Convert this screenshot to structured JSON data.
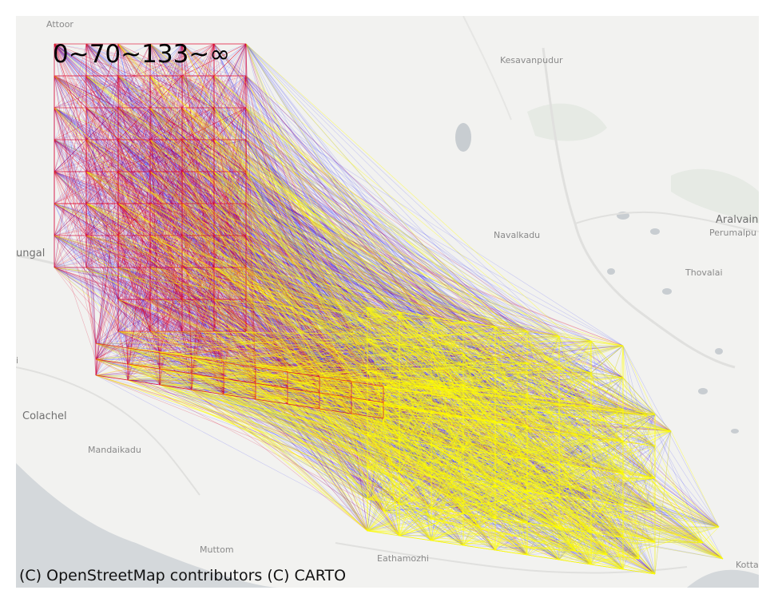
{
  "legend_text": "0~70~133~∞",
  "attribution": "(C) OpenStreetMap contributors (C) CARTO",
  "places": [
    {
      "id": "attoor",
      "label": "Attoor"
    },
    {
      "id": "kesavanpudur",
      "label": "Kesavanpudur"
    },
    {
      "id": "aralvain",
      "label": "Aralvain"
    },
    {
      "id": "perumalpu",
      "label": "Perumalpu"
    },
    {
      "id": "navalkadu",
      "label": "Navalkadu"
    },
    {
      "id": "thovalai",
      "label": "Thovalai"
    },
    {
      "id": "ungal",
      "label": "ungal"
    },
    {
      "id": "colachel",
      "label": "Colachel"
    },
    {
      "id": "mandaikadu",
      "label": "Mandaikadu"
    },
    {
      "id": "muttom",
      "label": "Muttom"
    },
    {
      "id": "eathamozhi",
      "label": "Eathamozhi"
    },
    {
      "id": "kotta",
      "label": "Kotta"
    },
    {
      "id": "i",
      "label": "i"
    }
  ],
  "colors": {
    "short_band": "#0000ff",
    "medium_band": "#e0002a",
    "long_band": "#ffff00",
    "land": "#f2f2f0",
    "sea": "#d4d8db",
    "water": "#c8cdd1"
  }
}
